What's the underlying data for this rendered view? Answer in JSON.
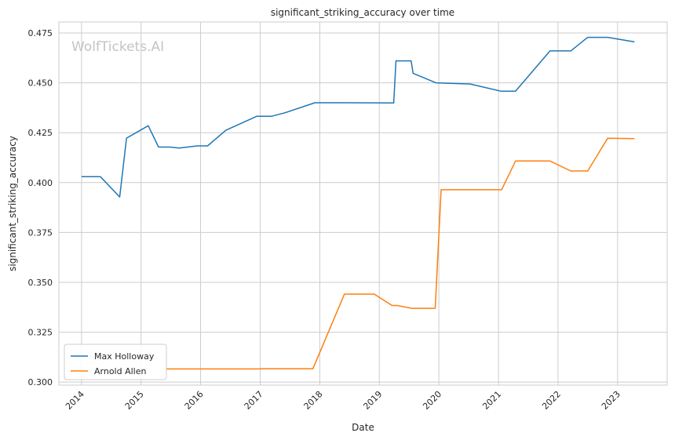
{
  "chart_data": {
    "type": "line",
    "title": "significant_striking_accuracy over time",
    "xlabel": "Date",
    "ylabel": "significant_striking_accuracy",
    "watermark": "WolfTickets.AI",
    "xlim": [
      "2013-08-15",
      "2023-11-01"
    ],
    "ylim": [
      0.2985,
      0.4805
    ],
    "x_ticks": [
      "2014-01-01",
      "2015-01-01",
      "2016-01-01",
      "2017-01-01",
      "2018-01-01",
      "2019-01-01",
      "2020-01-01",
      "2021-01-01",
      "2022-01-01",
      "2023-01-01"
    ],
    "x_tick_labels": [
      "2014",
      "2015",
      "2016",
      "2017",
      "2018",
      "2019",
      "2020",
      "2021",
      "2022",
      "2023"
    ],
    "y_ticks": [
      0.3,
      0.325,
      0.35,
      0.375,
      0.4,
      0.425,
      0.45,
      0.475
    ],
    "y_tick_labels": [
      "0.300",
      "0.325",
      "0.350",
      "0.375",
      "0.400",
      "0.425",
      "0.450",
      "0.475"
    ],
    "grid": true,
    "legend_position": "lower-left",
    "series": [
      {
        "name": "Max Holloway",
        "color": "#1f77b4",
        "points": [
          [
            "2014-01-01",
            0.403
          ],
          [
            "2014-04-26",
            0.403
          ],
          [
            "2014-08-23",
            0.3928
          ],
          [
            "2014-10-04",
            0.4223
          ],
          [
            "2015-02-14",
            0.4285
          ],
          [
            "2015-04-18",
            0.4178
          ],
          [
            "2015-06-27",
            0.4178
          ],
          [
            "2015-08-23",
            0.4173
          ],
          [
            "2015-12-12",
            0.4184
          ],
          [
            "2016-02-13",
            0.4184
          ],
          [
            "2016-06-04",
            0.4262
          ],
          [
            "2016-12-10",
            0.4332
          ],
          [
            "2017-03-10",
            0.4332
          ],
          [
            "2017-06-03",
            0.435
          ],
          [
            "2017-12-02",
            0.44
          ],
          [
            "2018-06-01",
            0.44
          ],
          [
            "2019-03-30",
            0.4399
          ],
          [
            "2019-04-13",
            0.461
          ],
          [
            "2019-07-15",
            0.461
          ],
          [
            "2019-07-27",
            0.4548
          ],
          [
            "2019-12-14",
            0.45
          ],
          [
            "2020-07-12",
            0.4494
          ],
          [
            "2021-01-16",
            0.4458
          ],
          [
            "2021-04-15",
            0.4458
          ],
          [
            "2021-11-13",
            0.466
          ],
          [
            "2022-03-20",
            0.466
          ],
          [
            "2022-07-02",
            0.4728
          ],
          [
            "2022-11-01",
            0.4728
          ],
          [
            "2023-04-15",
            0.4705
          ]
        ]
      },
      {
        "name": "Arnold Allen",
        "color": "#ff7f0e",
        "points": [
          [
            "2015-06-01",
            0.3066
          ],
          [
            "2017-01-01",
            0.3066
          ],
          [
            "2017-01-15",
            0.3067
          ],
          [
            "2017-11-20",
            0.3067
          ],
          [
            "2018-06-01",
            0.3441
          ],
          [
            "2018-12-01",
            0.3441
          ],
          [
            "2019-03-20",
            0.3384
          ],
          [
            "2019-04-20",
            0.3384
          ],
          [
            "2019-07-20",
            0.337
          ],
          [
            "2019-12-10",
            0.337
          ],
          [
            "2020-01-15",
            0.3964
          ],
          [
            "2021-01-20",
            0.3964
          ],
          [
            "2021-04-15",
            0.4108
          ],
          [
            "2021-11-13",
            0.4108
          ],
          [
            "2022-03-20",
            0.4058
          ],
          [
            "2022-07-02",
            0.4058
          ],
          [
            "2022-11-01",
            0.4222
          ],
          [
            "2023-04-15",
            0.422
          ]
        ]
      }
    ]
  }
}
